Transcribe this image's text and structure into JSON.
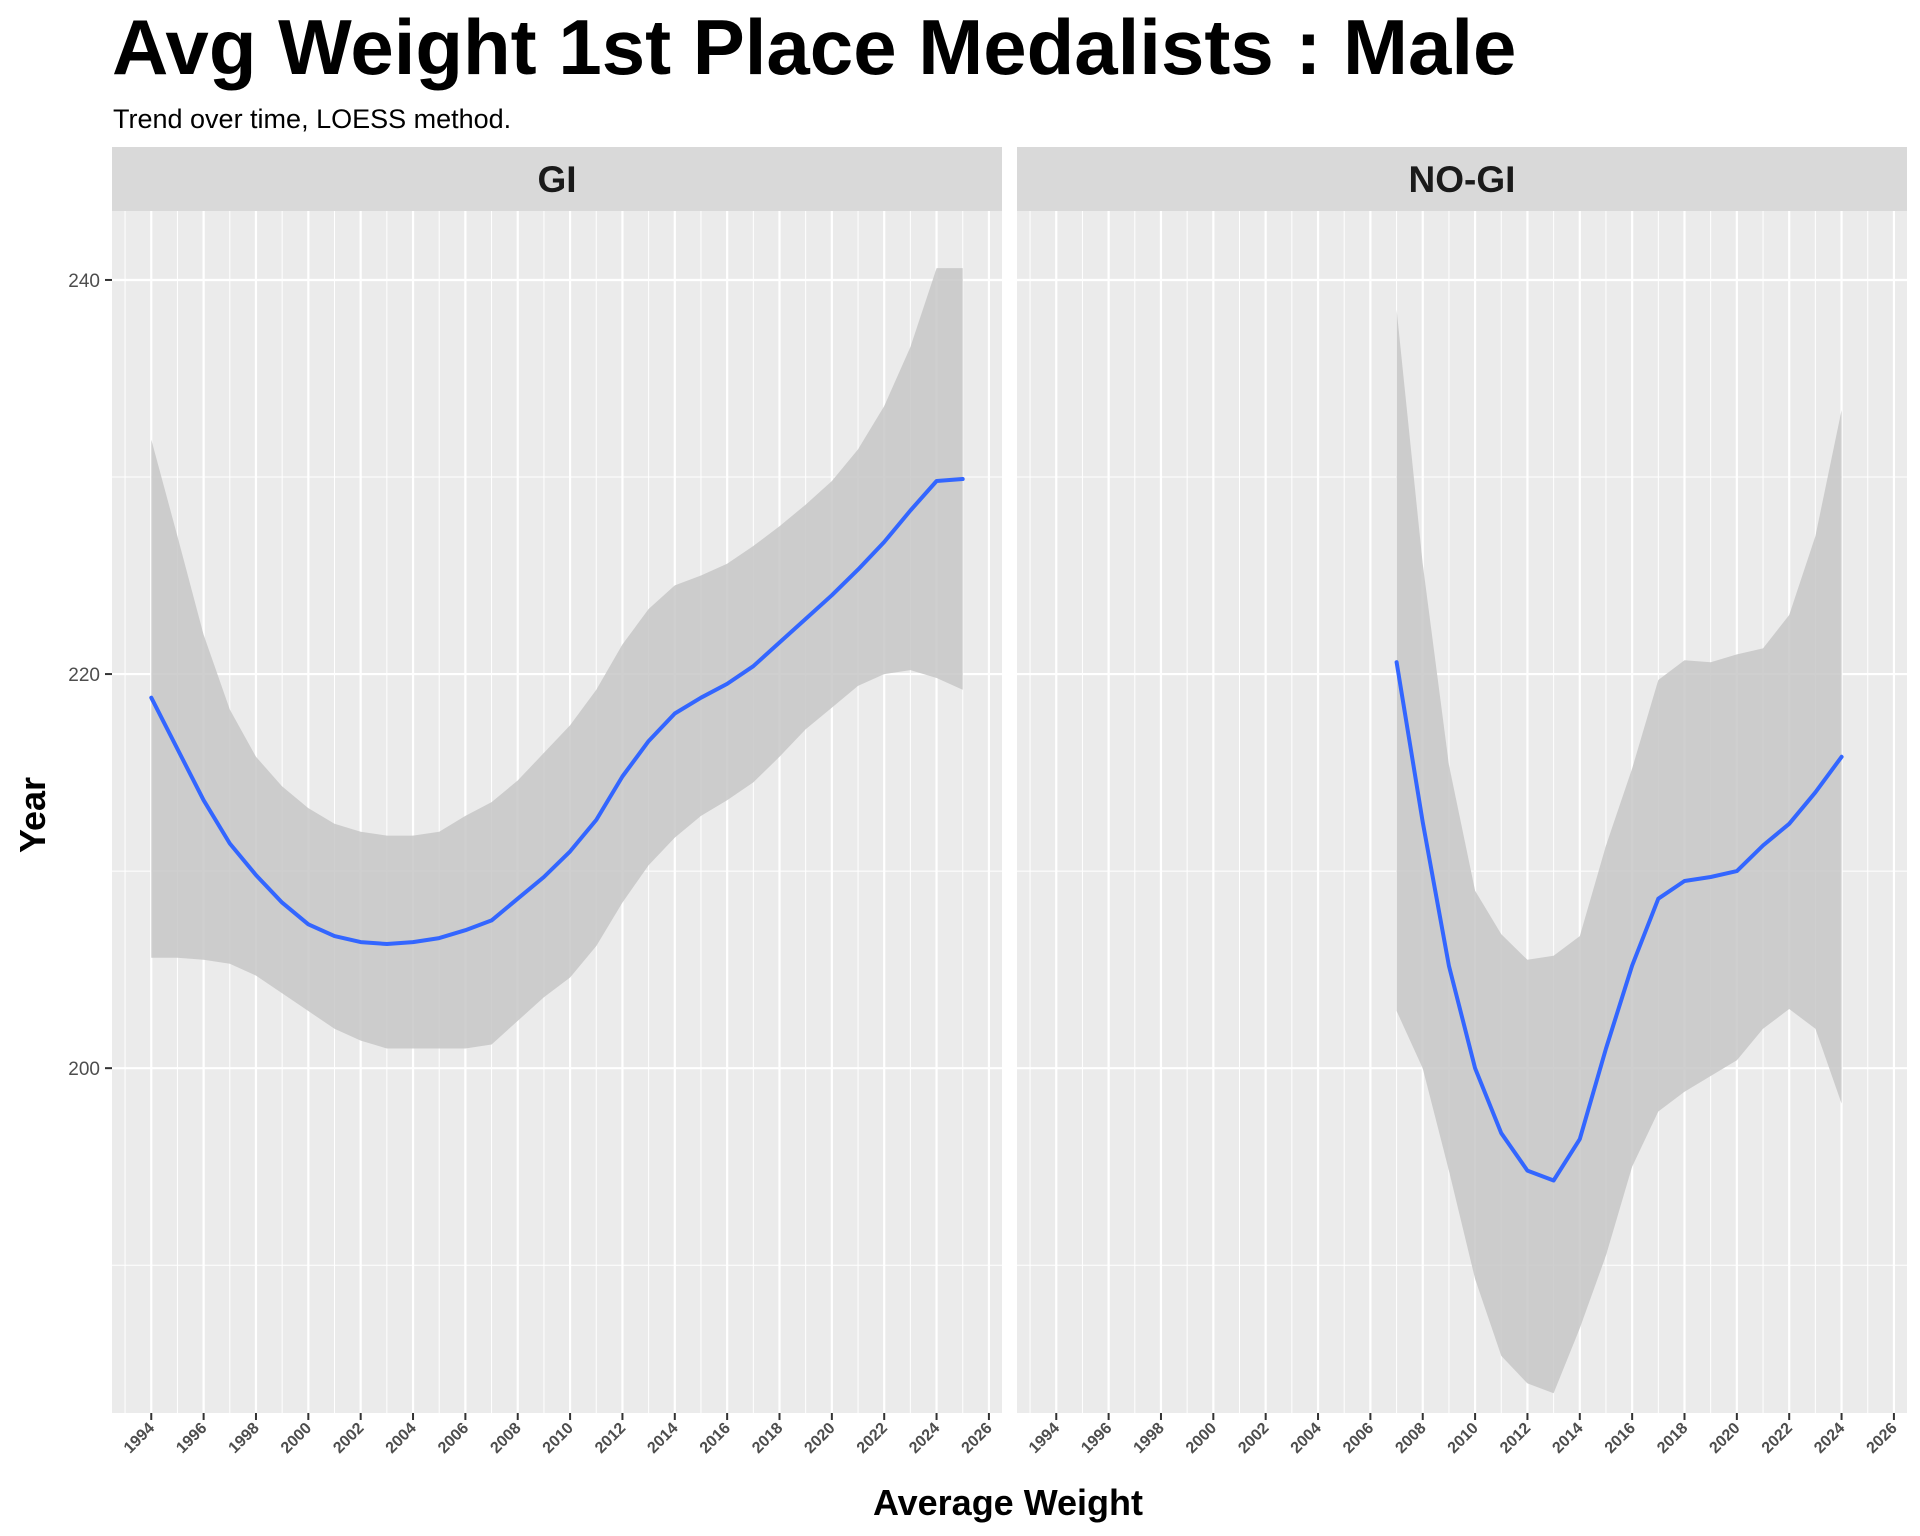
{
  "chart_data": {
    "type": "line",
    "title": "Avg Weight 1st Place Medalists : Male",
    "subtitle": "Trend over time, LOESS method.",
    "xlabel": "Average Weight",
    "ylabel": "Year",
    "xlim": [
      1992.5,
      2026.5
    ],
    "ylim": [
      182.5,
      243.5
    ],
    "x_ticks": [
      1994,
      1996,
      1998,
      2000,
      2002,
      2004,
      2006,
      2008,
      2010,
      2012,
      2014,
      2016,
      2018,
      2020,
      2022,
      2024,
      2026
    ],
    "y_ticks": [
      200,
      220,
      240
    ],
    "grid": true,
    "panels": [
      {
        "label": "GI",
        "series": {
          "x": [
            1994,
            1995,
            1996,
            1997,
            1998,
            1999,
            2000,
            2001,
            2002,
            2003,
            2004,
            2005,
            2006,
            2007,
            2008,
            2009,
            2010,
            2011,
            2012,
            2013,
            2014,
            2015,
            2016,
            2017,
            2018,
            2019,
            2020,
            2021,
            2022,
            2023,
            2024,
            2025
          ],
          "y": [
            218.8,
            216.2,
            213.6,
            211.4,
            209.8,
            208.4,
            207.3,
            206.7,
            206.4,
            206.3,
            206.4,
            206.6,
            207.0,
            207.5,
            208.6,
            209.7,
            211.0,
            212.6,
            214.8,
            216.6,
            218.0,
            218.8,
            219.5,
            220.4,
            221.6,
            222.8,
            224.0,
            225.3,
            226.7,
            228.3,
            229.8,
            229.9
          ],
          "lower": [
            205.6,
            205.6,
            205.5,
            205.3,
            204.7,
            203.8,
            202.9,
            202.0,
            201.4,
            201.0,
            201.0,
            201.0,
            201.0,
            201.2,
            202.4,
            203.6,
            204.6,
            206.2,
            208.4,
            210.3,
            211.7,
            212.8,
            213.6,
            214.5,
            215.8,
            217.2,
            218.3,
            219.4,
            220.0,
            220.2,
            219.8,
            219.2
          ],
          "upper": [
            231.9,
            227.0,
            222.0,
            218.2,
            215.8,
            214.3,
            213.2,
            212.4,
            212.0,
            211.8,
            211.8,
            212.0,
            212.8,
            213.5,
            214.6,
            216.0,
            217.4,
            219.2,
            221.5,
            223.3,
            224.5,
            225.0,
            225.6,
            226.5,
            227.5,
            228.6,
            229.8,
            231.4,
            233.6,
            236.6,
            240.6,
            240.6
          ]
        }
      },
      {
        "label": "NO-GI",
        "series": {
          "x": [
            2007,
            2008,
            2009,
            2010,
            2011,
            2012,
            2013,
            2014,
            2015,
            2016,
            2017,
            2018,
            2019,
            2020,
            2021,
            2022,
            2023,
            2024
          ],
          "y": [
            220.6,
            212.5,
            205.2,
            200.0,
            196.7,
            194.8,
            194.3,
            196.4,
            201.0,
            205.2,
            208.6,
            209.5,
            209.7,
            210.0,
            211.3,
            212.4,
            214.0,
            215.8
          ],
          "lower": [
            202.9,
            200.0,
            194.8,
            189.3,
            185.4,
            184.0,
            183.5,
            186.8,
            190.5,
            195.0,
            197.8,
            198.8,
            199.6,
            200.4,
            202.0,
            203.0,
            202.0,
            198.2
          ],
          "upper": [
            238.5,
            225.6,
            215.4,
            209.0,
            206.8,
            205.5,
            205.7,
            206.7,
            211.3,
            215.2,
            219.7,
            220.7,
            220.6,
            221.0,
            221.3,
            223.0,
            227.0,
            233.4
          ]
        }
      }
    ]
  },
  "colors": {
    "line": "#3366FF",
    "ribbon": "#C7C7C7",
    "panel_bg": "#EBEBEB",
    "strip_bg": "#D9D9D9",
    "grid": "#FFFFFF"
  }
}
